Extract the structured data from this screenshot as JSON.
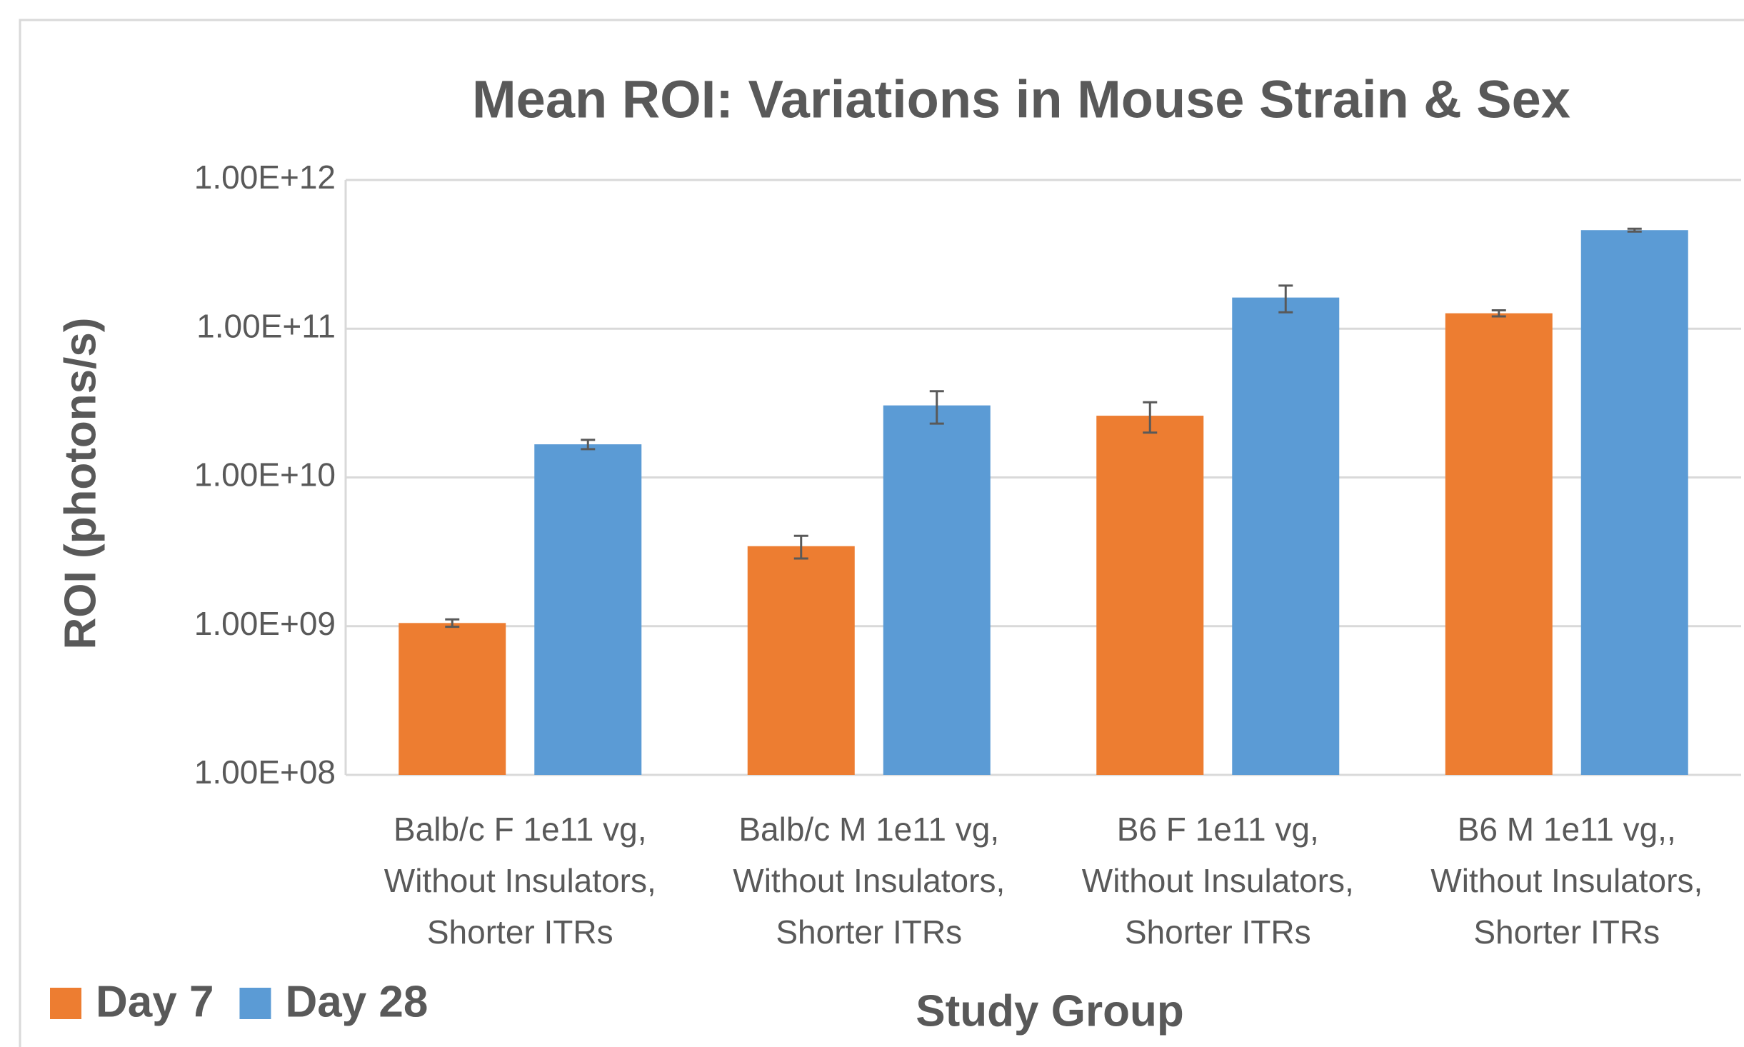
{
  "chart_data": {
    "type": "bar",
    "title": "Mean ROI: Variations in Mouse Strain & Sex",
    "x_label": "Study Group",
    "y_label": "ROI (photons/s)",
    "categories": [
      [
        "Balb/c  F 1e11 vg,",
        "Without Insulators,",
        "Shorter ITRs"
      ],
      [
        "Balb/c  M 1e11 vg,",
        "Without Insulators,",
        "Shorter ITRs"
      ],
      [
        "B6  F 1e11 vg,",
        "Without Insulators,",
        "Shorter ITRs"
      ],
      [
        "B6  M 1e11 vg,,",
        "Without Insulators,",
        "Shorter ITRs"
      ]
    ],
    "series": [
      {
        "name": "Day 7",
        "color": "#ed7d31",
        "values": [
          1050000000,
          3450000000,
          26000000000,
          127000000000
        ],
        "errors": [
          60000000,
          600000000,
          6000000000,
          6000000000
        ]
      },
      {
        "name": "Day 28",
        "color": "#5b9bd5",
        "values": [
          16700000000,
          30500000000,
          162000000000,
          460000000000
        ],
        "errors": [
          1200000000,
          7500000000,
          33000000000,
          10000000000
        ]
      }
    ],
    "ylim": [
      100000000,
      1000000000000
    ],
    "yticks": [
      {
        "value": 100000000,
        "label": "1.00E+08"
      },
      {
        "value": 1000000000,
        "label": "1.00E+09"
      },
      {
        "value": 10000000000,
        "label": "1.00E+10"
      },
      {
        "value": 100000000000,
        "label": "1.00E+11"
      },
      {
        "value": 1000000000000,
        "label": "1.00E+12"
      }
    ],
    "log_scale": true,
    "grid": true,
    "legend": "bottom-left"
  }
}
